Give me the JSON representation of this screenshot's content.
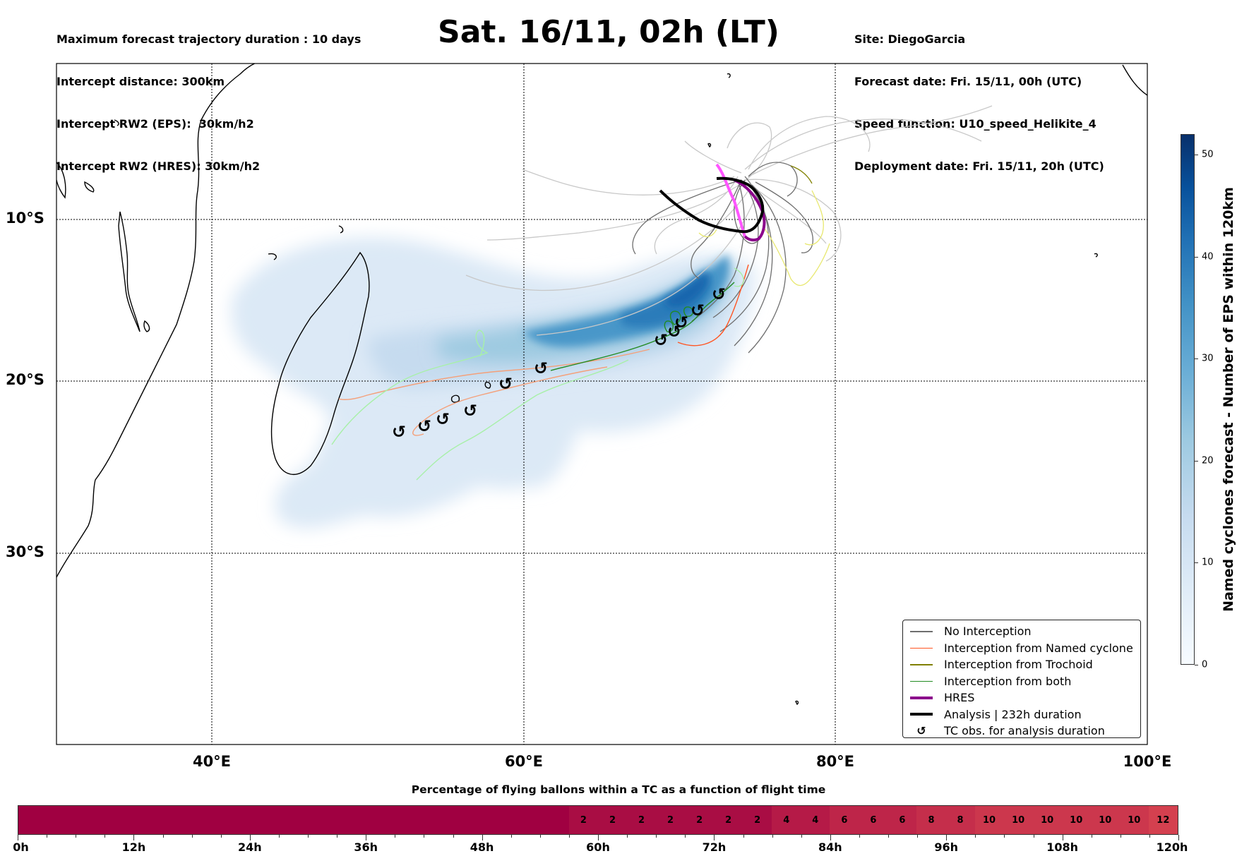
{
  "header": {
    "info_left": [
      "Maximum forecast trajectory duration : 10 days",
      "Intercept distance: 300km",
      "Intercept RW2 (EPS):  30km/h2",
      "Intercept RW2 (HRES): 30km/h2"
    ],
    "title": "Sat. 16/11, 02h (LT)",
    "info_right": [
      "Site: DiegoGarcia",
      "Forecast date: Fri. 15/11, 00h (UTC)",
      "Speed function: U10_speed_Helikite_4",
      "Deployment date: Fri. 15/11, 20h (UTC)"
    ]
  },
  "map": {
    "lat_labels": [
      "10°S",
      "20°S",
      "30°S"
    ],
    "lon_labels": [
      "40°E",
      "60°E",
      "80°E",
      "100°E"
    ],
    "colors": {
      "no_interception": "#6e6e6e",
      "named_cyclone": "#ff5522",
      "trochoid": "#808000",
      "both": "#228b22",
      "hres": "#8b008b",
      "analysis": "#000000"
    }
  },
  "legend": {
    "items": [
      {
        "label": "No Interception",
        "color": "#6e6e6e",
        "kind": "line-thin"
      },
      {
        "label": "Interception from Named cyclone",
        "color": "#ff5522",
        "kind": "line-thin"
      },
      {
        "label": "Interception from Trochoid",
        "color": "#808000",
        "kind": "line-thin"
      },
      {
        "label": "Interception from both",
        "color": "#228b22",
        "kind": "line-thin"
      },
      {
        "label": "HRES",
        "color": "#8b008b",
        "kind": "line-thick"
      },
      {
        "label": "Analysis | 232h duration",
        "color": "#000000",
        "kind": "line-thick"
      },
      {
        "label": "TC obs. for analysis duration",
        "color": "#000000",
        "kind": "tc-symbol"
      }
    ]
  },
  "colorbar": {
    "label": "Named cyclones forecast - Number of EPS within 120km",
    "ticks": [
      "0",
      "10",
      "20",
      "30",
      "40",
      "50"
    ],
    "range": [
      0,
      52
    ]
  },
  "flight_bar": {
    "title": "Percentage of flying ballons within a TC as a function of flight time",
    "tick_labels": [
      "0h",
      "12h",
      "24h",
      "36h",
      "48h",
      "60h",
      "72h",
      "84h",
      "96h",
      "108h",
      "120h"
    ],
    "cells": [
      {
        "label": "",
        "color": "#a00041"
      },
      {
        "label": "",
        "color": "#a00041"
      },
      {
        "label": "",
        "color": "#a00041"
      },
      {
        "label": "",
        "color": "#a00041"
      },
      {
        "label": "",
        "color": "#a00041"
      },
      {
        "label": "",
        "color": "#a00041"
      },
      {
        "label": "",
        "color": "#a00041"
      },
      {
        "label": "",
        "color": "#a00041"
      },
      {
        "label": "",
        "color": "#a00041"
      },
      {
        "label": "",
        "color": "#a00041"
      },
      {
        "label": "",
        "color": "#a00041"
      },
      {
        "label": "",
        "color": "#a00041"
      },
      {
        "label": "",
        "color": "#a00041"
      },
      {
        "label": "",
        "color": "#a00041"
      },
      {
        "label": "",
        "color": "#a00041"
      },
      {
        "label": "",
        "color": "#a00041"
      },
      {
        "label": "",
        "color": "#a00041"
      },
      {
        "label": "",
        "color": "#a00041"
      },
      {
        "label": "",
        "color": "#a00041"
      },
      {
        "label": "2",
        "color": "#a90d44"
      },
      {
        "label": "2",
        "color": "#a90d44"
      },
      {
        "label": "2",
        "color": "#a90d44"
      },
      {
        "label": "2",
        "color": "#a90d44"
      },
      {
        "label": "2",
        "color": "#a90d44"
      },
      {
        "label": "2",
        "color": "#a90d44"
      },
      {
        "label": "2",
        "color": "#a90d44"
      },
      {
        "label": "4",
        "color": "#b51a47"
      },
      {
        "label": "4",
        "color": "#b51a47"
      },
      {
        "label": "6",
        "color": "#be2549"
      },
      {
        "label": "6",
        "color": "#be2549"
      },
      {
        "label": "6",
        "color": "#be2549"
      },
      {
        "label": "8",
        "color": "#c52e4b"
      },
      {
        "label": "8",
        "color": "#c52e4b"
      },
      {
        "label": "10",
        "color": "#cc374d"
      },
      {
        "label": "10",
        "color": "#cc374d"
      },
      {
        "label": "10",
        "color": "#cc374d"
      },
      {
        "label": "10",
        "color": "#cc374d"
      },
      {
        "label": "10",
        "color": "#cc374d"
      },
      {
        "label": "10",
        "color": "#cc374d"
      },
      {
        "label": "12",
        "color": "#d4404f"
      }
    ]
  }
}
